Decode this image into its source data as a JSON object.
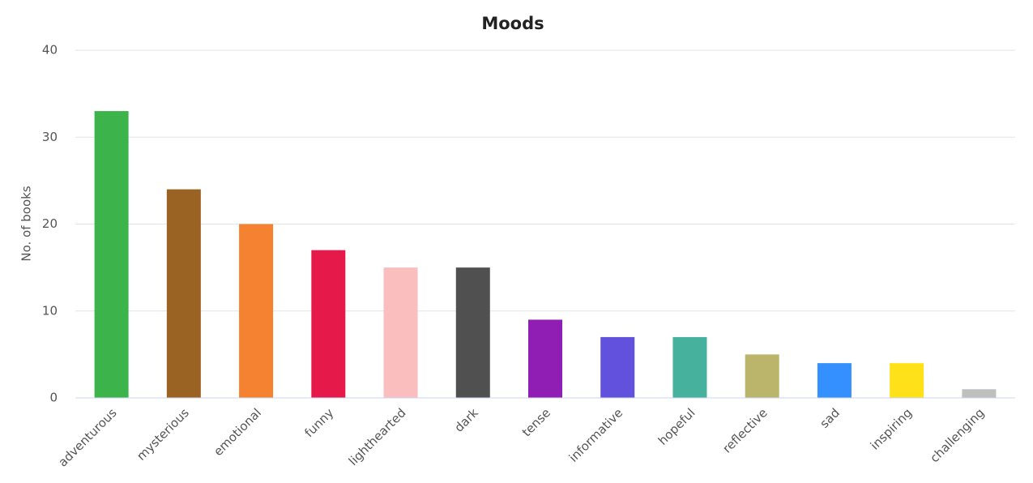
{
  "chart_data": {
    "type": "bar",
    "title": "Moods",
    "y_label": "No. of books",
    "categories": [
      "adventurous",
      "mysterious",
      "emotional",
      "funny",
      "lighthearted",
      "dark",
      "tense",
      "informative",
      "hopeful",
      "reflective",
      "sad",
      "inspiring",
      "challenging"
    ],
    "values": [
      33,
      24,
      20,
      17,
      15,
      15,
      9,
      7,
      7,
      5,
      4,
      4,
      1
    ],
    "colors": [
      "#3cb44b",
      "#9a6324",
      "#f58231",
      "#e6194b",
      "#fabebe",
      "#505050",
      "#911eb4",
      "#6251dc",
      "#46b29d",
      "#bab56a",
      "#3590ff",
      "#ffe119",
      "#bfbfbf"
    ],
    "ylim": [
      0,
      40
    ],
    "yticks": [
      0,
      10,
      20,
      30,
      40
    ],
    "grid": true
  }
}
